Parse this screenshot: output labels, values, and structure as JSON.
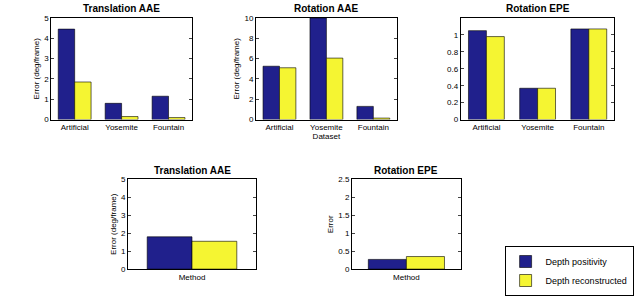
{
  "chart_data": [
    {
      "type": "bar",
      "title": "Translation AAE",
      "ylabel": "Error (deg/frame)",
      "categories": [
        "Artificial",
        "Yosemite",
        "Fountain"
      ],
      "series": [
        {
          "name": "Depth positivity",
          "color": "#20208c",
          "values": [
            4.45,
            0.8,
            1.15
          ]
        },
        {
          "name": "Depth reconstructed",
          "color": "#f5f532",
          "values": [
            1.85,
            0.15,
            0.1
          ]
        }
      ],
      "ylim": [
        0,
        5
      ],
      "yticks": [
        0,
        1,
        2,
        3,
        4,
        5
      ],
      "grid": false
    },
    {
      "type": "bar",
      "title": "Rotation AAE",
      "xlabel": "Dataset",
      "ylabel": "Error (deg/frame)",
      "categories": [
        "Artificial",
        "Yosemite",
        "Fountain"
      ],
      "series": [
        {
          "name": "Depth positivity",
          "color": "#20208c",
          "values": [
            5.25,
            10,
            1.3
          ]
        },
        {
          "name": "Depth reconstructed",
          "color": "#f5f532",
          "values": [
            5.1,
            6.05,
            0.15
          ]
        }
      ],
      "ylim": [
        0,
        10
      ],
      "yticks": [
        0,
        2,
        4,
        6,
        8,
        10
      ],
      "grid": false
    },
    {
      "type": "bar",
      "title": "Rotation EPE",
      "categories": [
        "Artificial",
        "Yosemite",
        "Fountain"
      ],
      "series": [
        {
          "name": "Depth positivity",
          "color": "#20208c",
          "values": [
            1.05,
            0.37,
            1.07
          ]
        },
        {
          "name": "Depth reconstructed",
          "color": "#f5f532",
          "values": [
            0.98,
            0.37,
            1.07
          ]
        }
      ],
      "ylim": [
        0,
        1.2
      ],
      "yticks": [
        0,
        0.2,
        0.4,
        0.6,
        0.8,
        1
      ],
      "grid": false
    },
    {
      "type": "bar",
      "title": "Translation AAE",
      "ylabel": "Error (deg/frame)",
      "categories": [
        "Method"
      ],
      "series": [
        {
          "name": "Depth positivity",
          "color": "#20208c",
          "values": [
            1.8
          ]
        },
        {
          "name": "Depth reconstructed",
          "color": "#f5f532",
          "values": [
            1.55
          ]
        }
      ],
      "ylim": [
        0,
        5
      ],
      "yticks": [
        0,
        1,
        2,
        3,
        4,
        5
      ],
      "grid": false
    },
    {
      "type": "bar",
      "title": "Rotation EPE",
      "ylabel": "Error",
      "categories": [
        "Method"
      ],
      "series": [
        {
          "name": "Depth positivity",
          "color": "#20208c",
          "values": [
            0.27
          ]
        },
        {
          "name": "Depth reconstructed",
          "color": "#f5f532",
          "values": [
            0.35
          ]
        }
      ],
      "ylim": [
        0,
        2.5
      ],
      "yticks": [
        0,
        0.5,
        1,
        1.5,
        2,
        2.5
      ],
      "grid": false,
      "legend": "lower right"
    }
  ]
}
